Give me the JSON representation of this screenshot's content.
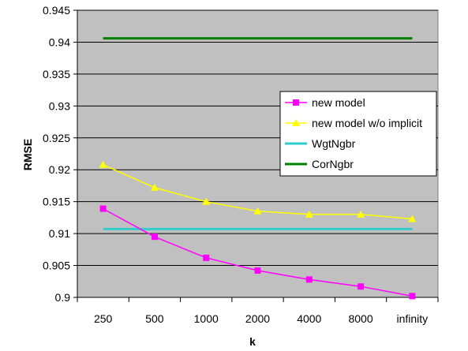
{
  "chart_data": {
    "type": "line",
    "title": "",
    "xlabel": "k",
    "ylabel": "RMSE",
    "categories": [
      "250",
      "500",
      "1000",
      "2000",
      "4000",
      "8000",
      "infinity"
    ],
    "ylim": [
      0.9,
      0.945
    ],
    "yticks": [
      "0.9",
      "0.905",
      "0.91",
      "0.915",
      "0.92",
      "0.925",
      "0.93",
      "0.935",
      "0.94",
      "0.945"
    ],
    "grid": true,
    "legend_position": "right",
    "series": [
      {
        "name": "new model",
        "color": "#ff00ff",
        "marker": "square",
        "values": [
          0.9139,
          0.9095,
          0.9062,
          0.9042,
          0.9028,
          0.9017,
          0.9002
        ]
      },
      {
        "name": "new model w/o implicit",
        "color": "#ffff00",
        "marker": "triangle",
        "values": [
          0.9208,
          0.9172,
          0.915,
          0.9135,
          0.913,
          0.913,
          0.9123
        ]
      },
      {
        "name": "WgtNgbr",
        "color": "#33cccc",
        "marker": "none",
        "values": [
          0.9107,
          0.9107,
          0.9107,
          0.9107,
          0.9107,
          0.9107,
          0.9107
        ]
      },
      {
        "name": "CorNgbr",
        "color": "#008000",
        "marker": "none",
        "values": [
          0.9406,
          0.9406,
          0.9406,
          0.9406,
          0.9406,
          0.9406,
          0.9406
        ]
      }
    ]
  }
}
